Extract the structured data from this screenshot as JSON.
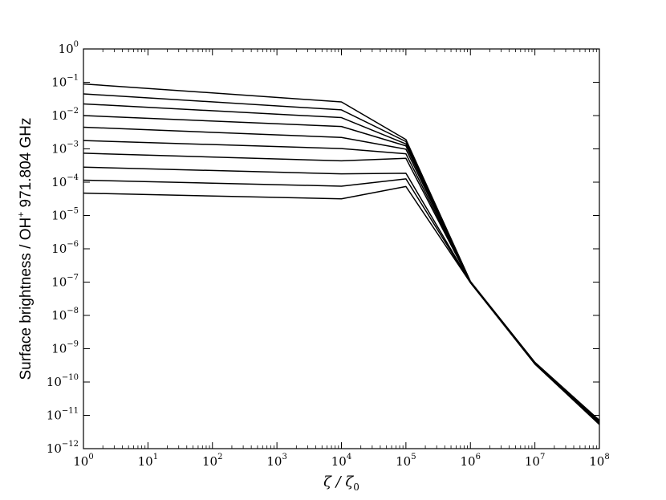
{
  "chart_data": {
    "type": "line",
    "x_scale": "log",
    "y_scale": "log",
    "xlim": [
      1,
      100000000
    ],
    "ylim": [
      1e-12,
      1
    ],
    "grid": false,
    "legend": "none",
    "xlabel": {
      "main": "ζ / ζ",
      "sub": "0"
    },
    "ylabel": {
      "pre": "Surface brightness / OH",
      "sup": "+",
      "post": " 971.804 GHz"
    },
    "x_ticks": [
      {
        "base": "10",
        "exp": "0"
      },
      {
        "base": "10",
        "exp": "1"
      },
      {
        "base": "10",
        "exp": "2"
      },
      {
        "base": "10",
        "exp": "3"
      },
      {
        "base": "10",
        "exp": "4"
      },
      {
        "base": "10",
        "exp": "5"
      },
      {
        "base": "10",
        "exp": "6"
      },
      {
        "base": "10",
        "exp": "7"
      },
      {
        "base": "10",
        "exp": "8"
      }
    ],
    "y_ticks": [
      {
        "base": "10",
        "exp": "0"
      },
      {
        "base": "10",
        "exp": "−1"
      },
      {
        "base": "10",
        "exp": "−2"
      },
      {
        "base": "10",
        "exp": "−3"
      },
      {
        "base": "10",
        "exp": "−4"
      },
      {
        "base": "10",
        "exp": "−5"
      },
      {
        "base": "10",
        "exp": "−6"
      },
      {
        "base": "10",
        "exp": "−7"
      },
      {
        "base": "10",
        "exp": "−8"
      },
      {
        "base": "10",
        "exp": "−9"
      },
      {
        "base": "10",
        "exp": "−10"
      },
      {
        "base": "10",
        "exp": "−11"
      },
      {
        "base": "10",
        "exp": "−12"
      }
    ],
    "x": [
      1,
      10000,
      100000,
      1000000,
      10000000,
      100000000
    ],
    "series_color": "#000000",
    "series": [
      {
        "values": [
          0.089,
          0.0257,
          0.00191,
          1.05e-07,
          3.9e-10,
          7.1e-12
        ]
      },
      {
        "values": [
          0.0447,
          0.0148,
          0.00166,
          1.04e-07,
          3.85e-10,
          6.9e-12
        ]
      },
      {
        "values": [
          0.0224,
          0.0087,
          0.00141,
          1.03e-07,
          3.8e-10,
          6.7e-12
        ]
      },
      {
        "values": [
          0.01,
          0.0047,
          0.00123,
          1.02e-07,
          3.75e-10,
          6.5e-12
        ]
      },
      {
        "values": [
          0.00447,
          0.0022,
          0.00098,
          1.01e-07,
          3.7e-10,
          6.3e-12
        ]
      },
      {
        "values": [
          0.00178,
          0.00102,
          0.00071,
          1e-07,
          3.65e-10,
          6.1e-12
        ]
      },
      {
        "values": [
          0.000741,
          0.000437,
          0.00052,
          9.9e-08,
          3.6e-10,
          5.9e-12
        ]
      },
      {
        "values": [
          0.000282,
          0.000178,
          0.000186,
          9.8e-08,
          3.55e-10,
          5.7e-12
        ]
      },
      {
        "values": [
          0.000115,
          7.59e-05,
          0.000126,
          9.7e-08,
          3.5e-10,
          5.5e-12
        ]
      },
      {
        "values": [
          4.68e-05,
          3.16e-05,
          7.41e-05,
          9.6e-08,
          3.45e-10,
          5.3e-12
        ]
      }
    ]
  }
}
